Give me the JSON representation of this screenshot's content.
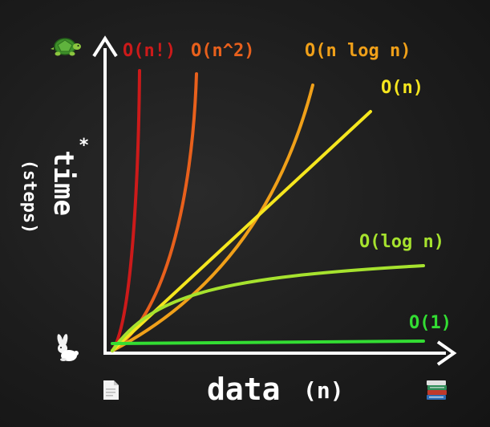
{
  "chart_data": {
    "type": "line",
    "title": "",
    "xlabel": "data",
    "xlabel_unit": "(n)",
    "ylabel": "time",
    "ylabel_unit": "(steps)",
    "ylabel_marker": "*",
    "grid": false,
    "legend": "inline-labels",
    "series": [
      {
        "name": "O(n!)",
        "color": "#cc1a1a"
      },
      {
        "name": "O(n^2)",
        "color": "#e8601c"
      },
      {
        "name": "O(n log n)",
        "color": "#f0a019"
      },
      {
        "name": "O(n)",
        "color": "#f5e61e"
      },
      {
        "name": "O(log n)",
        "color": "#a6e22e"
      },
      {
        "name": "O(1)",
        "color": "#33dd33"
      }
    ]
  },
  "icons": {
    "top_left": "turtle-icon",
    "bottom_left": "rabbit-icon",
    "x_start": "document-icon",
    "x_end": "books-icon"
  },
  "colors": {
    "background": "#1c1c1c",
    "axis": "#ffffff",
    "text": "#ffffff"
  }
}
